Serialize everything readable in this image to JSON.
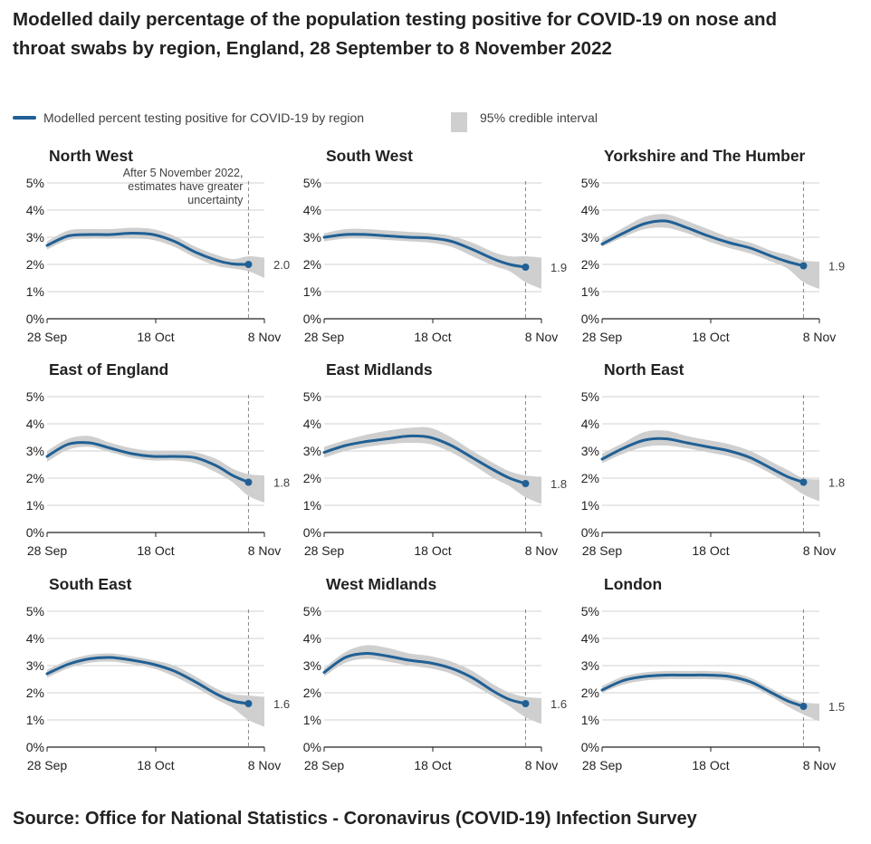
{
  "title": "Modelled daily percentage of the population testing positive for COVID-19 on nose and throat swabs by region, England, 28 September to 8 November 2022",
  "legend": {
    "line_label": "Modelled percent testing positive for COVID-19 by region",
    "interval_label": "95% credible interval"
  },
  "source": "Source: Office for National Statistics - Coronavirus (COVID-19) Infection Survey",
  "colors": {
    "line": "#206095",
    "interval": "#cfcfcf",
    "grid": "#d0d0d0",
    "axis": "#222222"
  },
  "chart_data": {
    "type": "line",
    "x_ticks": [
      "28 Sep",
      "18 Oct",
      "8 Nov"
    ],
    "x_range_days": [
      0,
      41
    ],
    "y_ticks": [
      "0%",
      "1%",
      "2%",
      "3%",
      "4%",
      "5%"
    ],
    "ylim": [
      0,
      5
    ],
    "sample_days": [
      0,
      4,
      8,
      12,
      16,
      20,
      24,
      28,
      32,
      35,
      38
    ],
    "last_estimate_day": 38,
    "uncertainty_note": [
      "After 5 November 2022,",
      "estimates have greater",
      "uncertainty"
    ],
    "series": [
      {
        "name": "North West",
        "end_label": "2.0",
        "values": [
          2.7,
          3.05,
          3.1,
          3.1,
          3.15,
          3.1,
          2.85,
          2.45,
          2.15,
          2.02,
          2.0
        ],
        "lower": [
          2.55,
          2.9,
          2.95,
          2.95,
          2.95,
          2.9,
          2.65,
          2.25,
          1.95,
          1.85,
          1.75
        ],
        "upper": [
          2.85,
          3.25,
          3.3,
          3.3,
          3.35,
          3.3,
          3.05,
          2.65,
          2.35,
          2.2,
          2.3
        ]
      },
      {
        "name": "South West",
        "end_label": "1.9",
        "values": [
          3.0,
          3.1,
          3.1,
          3.05,
          3.0,
          2.97,
          2.85,
          2.55,
          2.2,
          2.0,
          1.9
        ],
        "lower": [
          2.85,
          2.95,
          2.95,
          2.9,
          2.85,
          2.8,
          2.65,
          2.3,
          1.95,
          1.75,
          1.35
        ],
        "upper": [
          3.15,
          3.3,
          3.3,
          3.25,
          3.2,
          3.15,
          3.05,
          2.8,
          2.45,
          2.3,
          2.3
        ]
      },
      {
        "name": "Yorkshire and The Humber",
        "end_label": "1.9",
        "values": [
          2.75,
          3.15,
          3.5,
          3.6,
          3.35,
          3.05,
          2.8,
          2.6,
          2.3,
          2.1,
          1.95
        ],
        "lower": [
          2.65,
          3.0,
          3.3,
          3.35,
          3.15,
          2.85,
          2.6,
          2.4,
          2.1,
          1.85,
          1.35
        ],
        "upper": [
          2.9,
          3.35,
          3.75,
          3.85,
          3.6,
          3.3,
          3.0,
          2.8,
          2.5,
          2.35,
          2.15
        ]
      },
      {
        "name": "East of England",
        "end_label": "1.8",
        "values": [
          2.8,
          3.25,
          3.3,
          3.1,
          2.9,
          2.8,
          2.8,
          2.75,
          2.45,
          2.1,
          1.85
        ],
        "lower": [
          2.6,
          3.05,
          3.15,
          2.95,
          2.75,
          2.65,
          2.65,
          2.55,
          2.2,
          1.85,
          1.35
        ],
        "upper": [
          3.0,
          3.45,
          3.55,
          3.3,
          3.1,
          3.0,
          3.0,
          2.95,
          2.7,
          2.35,
          2.15
        ]
      },
      {
        "name": "East Midlands",
        "end_label": "1.8",
        "values": [
          2.95,
          3.2,
          3.35,
          3.45,
          3.55,
          3.5,
          3.2,
          2.75,
          2.3,
          2.0,
          1.8
        ],
        "lower": [
          2.75,
          3.0,
          3.15,
          3.25,
          3.3,
          3.25,
          2.95,
          2.5,
          2.0,
          1.7,
          1.3
        ],
        "upper": [
          3.15,
          3.4,
          3.6,
          3.75,
          3.85,
          3.85,
          3.5,
          3.0,
          2.55,
          2.25,
          2.1
        ]
      },
      {
        "name": "North East",
        "end_label": "1.8",
        "values": [
          2.7,
          3.1,
          3.4,
          3.45,
          3.3,
          3.15,
          3.0,
          2.75,
          2.35,
          2.05,
          1.85
        ],
        "lower": [
          2.55,
          2.9,
          3.15,
          3.2,
          3.1,
          2.95,
          2.8,
          2.55,
          2.15,
          1.8,
          1.4
        ],
        "upper": [
          2.9,
          3.3,
          3.7,
          3.75,
          3.55,
          3.4,
          3.25,
          3.0,
          2.6,
          2.3,
          2.0
        ]
      },
      {
        "name": "South East",
        "end_label": "1.6",
        "values": [
          2.7,
          3.05,
          3.25,
          3.3,
          3.2,
          3.05,
          2.8,
          2.4,
          1.95,
          1.7,
          1.6
        ],
        "lower": [
          2.55,
          2.9,
          3.1,
          3.15,
          3.05,
          2.9,
          2.6,
          2.2,
          1.75,
          1.45,
          1.0
        ],
        "upper": [
          2.85,
          3.2,
          3.4,
          3.45,
          3.35,
          3.2,
          3.0,
          2.6,
          2.15,
          1.95,
          1.9
        ]
      },
      {
        "name": "West Midlands",
        "end_label": "1.6",
        "values": [
          2.75,
          3.3,
          3.45,
          3.35,
          3.2,
          3.1,
          2.9,
          2.55,
          2.05,
          1.75,
          1.6
        ],
        "lower": [
          2.6,
          3.1,
          3.25,
          3.15,
          3.0,
          2.9,
          2.7,
          2.3,
          1.85,
          1.5,
          1.1
        ],
        "upper": [
          2.9,
          3.5,
          3.75,
          3.65,
          3.45,
          3.35,
          3.15,
          2.8,
          2.3,
          2.0,
          1.85
        ]
      },
      {
        "name": "London",
        "end_label": "1.5",
        "values": [
          2.1,
          2.45,
          2.6,
          2.65,
          2.65,
          2.65,
          2.6,
          2.4,
          2.0,
          1.7,
          1.5
        ],
        "lower": [
          2.0,
          2.3,
          2.45,
          2.5,
          2.5,
          2.5,
          2.45,
          2.25,
          1.85,
          1.5,
          1.2
        ],
        "upper": [
          2.25,
          2.6,
          2.75,
          2.8,
          2.8,
          2.8,
          2.75,
          2.55,
          2.15,
          1.85,
          1.65
        ]
      }
    ]
  }
}
